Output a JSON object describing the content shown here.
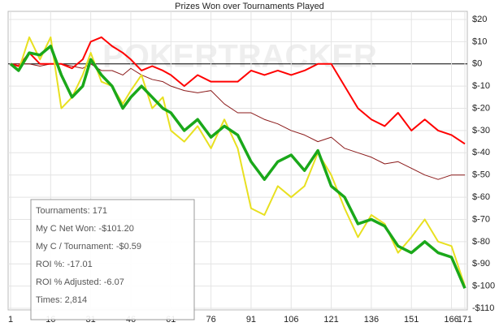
{
  "chart_data": {
    "type": "line",
    "title": "Prizes Won over Tournaments Played",
    "watermark": "POKERTRACKER",
    "x": [
      1,
      4,
      8,
      12,
      16,
      20,
      24,
      28,
      31,
      35,
      39,
      43,
      46,
      50,
      54,
      58,
      61,
      66,
      71,
      76,
      81,
      86,
      91,
      96,
      101,
      106,
      111,
      116,
      121,
      126,
      131,
      136,
      141,
      146,
      151,
      156,
      161,
      166,
      171
    ],
    "series": [
      {
        "color": "#8b1a1a",
        "width": 1,
        "values": [
          0,
          0,
          0,
          -1,
          0,
          0,
          -1,
          -2,
          0,
          -3,
          -3,
          -5,
          -2,
          -5,
          -7,
          -8,
          -10,
          -12,
          -13,
          -12,
          -18,
          -22,
          -22,
          -25,
          -27,
          -30,
          -32,
          -35,
          -33,
          -38,
          -40,
          -42,
          -45,
          -44,
          -47,
          -50,
          -52,
          -50,
          -50
        ]
      },
      {
        "color": "#ff0000",
        "width": 2,
        "values": [
          0,
          -1,
          5,
          0,
          0,
          0,
          -2,
          2,
          10,
          12,
          8,
          5,
          2,
          -3,
          -1,
          -3,
          -5,
          -10,
          -5,
          -8,
          -8,
          -8,
          -3,
          -5,
          -3,
          -5,
          -3,
          0,
          0,
          -10,
          -20,
          -25,
          -28,
          -22,
          -30,
          -25,
          -30,
          -32,
          -36
        ]
      },
      {
        "color": "#e8e020",
        "width": 2,
        "values": [
          0,
          -3,
          12,
          2,
          12,
          -20,
          -15,
          -5,
          5,
          -8,
          -10,
          -18,
          -12,
          -5,
          -20,
          -15,
          -30,
          -35,
          -28,
          -38,
          -25,
          -38,
          -65,
          -68,
          -55,
          -60,
          -55,
          -40,
          -50,
          -65,
          -78,
          -68,
          -72,
          -85,
          -78,
          -70,
          -80,
          -82,
          -100
        ]
      },
      {
        "color": "#1aa81a",
        "width": 3.5,
        "values": [
          0,
          -3,
          5,
          4,
          8,
          -5,
          -15,
          -10,
          2,
          -5,
          -10,
          -20,
          -15,
          -10,
          -15,
          -20,
          -22,
          -30,
          -25,
          -33,
          -28,
          -32,
          -44,
          -52,
          -44,
          -41,
          -48,
          -39,
          -55,
          -60,
          -72,
          -70,
          -73,
          -82,
          -85,
          -80,
          -85,
          -87,
          -101
        ]
      }
    ],
    "xlim": [
      1,
      171
    ],
    "xticks": [
      1,
      16,
      31,
      46,
      61,
      76,
      91,
      106,
      121,
      136,
      151,
      166,
      171
    ],
    "ylim": [
      -110,
      20
    ],
    "yticks": [
      {
        "value": 20,
        "label": "$20"
      },
      {
        "value": 10,
        "label": "$10"
      },
      {
        "value": 0,
        "label": "$0"
      },
      {
        "value": -10,
        "label": "$-10"
      },
      {
        "value": -20,
        "label": "$-20"
      },
      {
        "value": -30,
        "label": "$-30"
      },
      {
        "value": -40,
        "label": "$-40"
      },
      {
        "value": -50,
        "label": "$-50"
      },
      {
        "value": -60,
        "label": "$-60"
      },
      {
        "value": -70,
        "label": "$-70"
      },
      {
        "value": -80,
        "label": "$-80"
      },
      {
        "value": -90,
        "label": "$-90"
      },
      {
        "value": -100,
        "label": "$-100"
      },
      {
        "value": -110,
        "label": "-$110"
      }
    ],
    "grid": true,
    "info": [
      "Tournaments: 171",
      "My C Net Won: -$101.20",
      "My C / Tournament: -$0.59",
      "ROI %: -17.01",
      "ROI % Adjusted: -6.07",
      "Times: 2,814"
    ]
  }
}
